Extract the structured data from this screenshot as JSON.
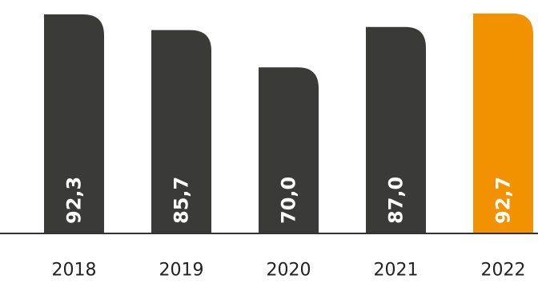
{
  "chart_data": {
    "type": "bar",
    "categories": [
      "2018",
      "2019",
      "2020",
      "2021",
      "2022"
    ],
    "values": [
      92.3,
      85.7,
      70.0,
      87.0,
      92.7
    ],
    "value_labels": [
      "92,3",
      "85,7",
      "70,0",
      "87,0",
      "92,7"
    ],
    "ylim": [
      0,
      95
    ],
    "grid": false,
    "legend": "none",
    "colors": {
      "bar": "#3a3a39",
      "highlight": "#f39200",
      "axis": "#333333"
    },
    "highlight_index": 4
  }
}
